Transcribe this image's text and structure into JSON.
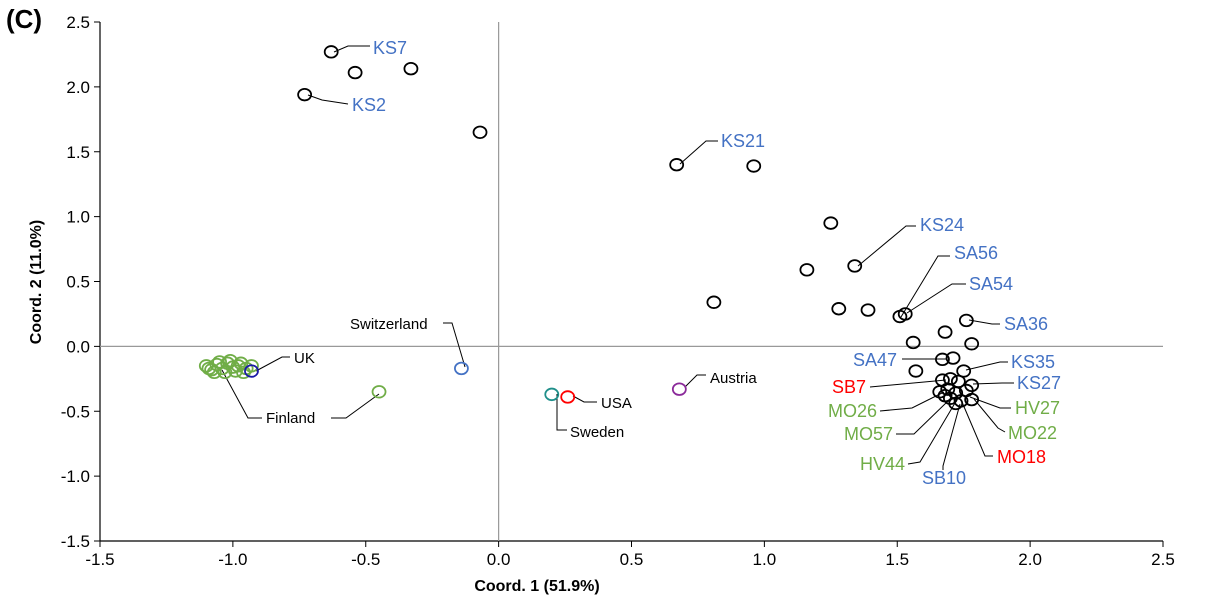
{
  "panel_label": "(C)",
  "colors": {
    "point": "#000000",
    "blue": "#4472c4",
    "red": "#ff0000",
    "green": "#70ad47",
    "axis": "#999999"
  },
  "chart_data": {
    "type": "scatter",
    "title": "",
    "xlabel": "Coord. 1 (51.9%)",
    "ylabel": "Coord. 2 (11.0%)",
    "xlim": [
      -1.5,
      2.5
    ],
    "ylim": [
      -1.5,
      2.5
    ],
    "xticks": [
      -1.5,
      -1.0,
      -0.5,
      0.0,
      0.5,
      1.0,
      1.5,
      2.0,
      2.5
    ],
    "xtick_labels": [
      "-1.5",
      "-1.0",
      "-0.5",
      "0.0",
      "0.5",
      "1.0",
      "1.5",
      "2.0",
      "2.5"
    ],
    "yticks": [
      -1.5,
      -1.0,
      -0.5,
      0.0,
      0.5,
      1.0,
      1.5,
      2.0,
      2.5
    ],
    "ytick_labels": [
      "-1.5",
      "-1.0",
      "-0.5",
      "0.0",
      "0.5",
      "1.0",
      "1.5",
      "2.0",
      "2.5"
    ],
    "grid": false,
    "zero_lines": true,
    "series": [
      {
        "color": "black",
        "points": [
          [
            -0.63,
            2.27
          ],
          [
            -0.54,
            2.11
          ],
          [
            -0.33,
            2.14
          ],
          [
            -0.73,
            1.94
          ],
          [
            -0.07,
            1.65
          ],
          [
            0.67,
            1.4
          ],
          [
            0.96,
            1.39
          ],
          [
            1.25,
            0.95
          ],
          [
            1.34,
            0.62
          ],
          [
            1.16,
            0.59
          ],
          [
            0.81,
            0.34
          ],
          [
            1.28,
            0.29
          ],
          [
            1.39,
            0.28
          ],
          [
            1.51,
            0.23
          ],
          [
            1.53,
            0.25
          ],
          [
            1.76,
            0.2
          ],
          [
            1.68,
            0.11
          ],
          [
            1.56,
            0.03
          ],
          [
            1.78,
            0.02
          ],
          [
            1.67,
            -0.1
          ],
          [
            1.71,
            -0.09
          ],
          [
            1.57,
            -0.19
          ],
          [
            1.75,
            -0.19
          ],
          [
            1.67,
            -0.26
          ],
          [
            1.7,
            -0.25
          ],
          [
            1.73,
            -0.27
          ],
          [
            1.78,
            -0.3
          ],
          [
            1.66,
            -0.35
          ],
          [
            1.69,
            -0.33
          ],
          [
            1.72,
            -0.36
          ],
          [
            1.76,
            -0.34
          ],
          [
            1.7,
            -0.4
          ],
          [
            1.74,
            -0.42
          ],
          [
            1.78,
            -0.41
          ],
          [
            1.68,
            -0.38
          ],
          [
            1.72,
            -0.44
          ]
        ]
      },
      {
        "color": "green",
        "points": [
          [
            -1.1,
            -0.15
          ],
          [
            -1.08,
            -0.18
          ],
          [
            -1.06,
            -0.14
          ],
          [
            -1.04,
            -0.17
          ],
          [
            -1.02,
            -0.13
          ],
          [
            -1.0,
            -0.16
          ],
          [
            -0.98,
            -0.15
          ],
          [
            -1.07,
            -0.2
          ],
          [
            -1.03,
            -0.2
          ],
          [
            -0.99,
            -0.19
          ],
          [
            -1.05,
            -0.12
          ],
          [
            -1.01,
            -0.11
          ],
          [
            -0.97,
            -0.13
          ],
          [
            -0.95,
            -0.17
          ],
          [
            -0.93,
            -0.15
          ],
          [
            -0.96,
            -0.2
          ],
          [
            -1.09,
            -0.17
          ],
          [
            -0.45,
            -0.35
          ]
        ]
      },
      {
        "color": "navy",
        "points": [
          [
            -0.93,
            -0.19
          ]
        ]
      },
      {
        "color": "blue",
        "points": [
          [
            -0.14,
            -0.17
          ]
        ]
      },
      {
        "color": "teal",
        "points": [
          [
            0.2,
            -0.37
          ]
        ]
      },
      {
        "color": "red",
        "points": [
          [
            0.26,
            -0.39
          ]
        ]
      },
      {
        "color": "purple",
        "points": [
          [
            0.68,
            -0.33
          ]
        ]
      }
    ],
    "annotations": [
      {
        "text": "KS7",
        "color": "blue",
        "size": "big",
        "ax": -0.63,
        "ay": 2.27,
        "tx": 0.4,
        "ty": 2.3
      },
      {
        "text": "KS2",
        "color": "blue",
        "size": "big",
        "ax": -0.73,
        "ay": 1.94,
        "tx": 0.58,
        "ty": 1.86
      },
      {
        "text": "KS21",
        "color": "blue",
        "size": "big",
        "ax": 0.67,
        "ay": 1.4,
        "tx": 1.78,
        "ty": 1.58
      },
      {
        "text": "KS24",
        "color": "blue",
        "size": "big",
        "ax": 1.34,
        "ay": 0.62,
        "tx": 3.16,
        "ty": 0.94
      },
      {
        "text": "SA56",
        "color": "blue",
        "size": "big",
        "ax": 1.51,
        "ay": 0.23,
        "tx": 3.15,
        "ty": 0.71
      },
      {
        "text": "SA54",
        "color": "blue",
        "size": "big",
        "ax": 1.53,
        "ay": 0.25,
        "tx": 2.98,
        "ty": 0.47
      },
      {
        "text": "SA36",
        "color": "blue",
        "size": "big",
        "ax": 1.76,
        "ay": 0.2,
        "tx": 3.03,
        "ty": 0.16
      },
      {
        "text": "SA47",
        "color": "blue",
        "size": "big",
        "ax": 1.67,
        "ay": -0.1,
        "tx": -0.91,
        "ty": -0.11
      },
      {
        "text": "KS35",
        "color": "blue",
        "size": "big",
        "ax": 1.75,
        "ay": -0.19,
        "tx": 2.82,
        "ty": -0.1
      },
      {
        "text": "SB7",
        "color": "red",
        "size": "big",
        "ax": 1.67,
        "ay": -0.26,
        "tx": -0.61,
        "ty": -0.3
      },
      {
        "text": "KS27",
        "color": "blue",
        "size": "big",
        "ax": 1.78,
        "ay": -0.3,
        "tx": 2.48,
        "ty": -0.3
      },
      {
        "text": "MO26",
        "color": "green",
        "size": "big",
        "ax": 1.66,
        "ay": -0.35,
        "tx": -0.38,
        "ty": -0.5
      },
      {
        "text": "HV27",
        "color": "green",
        "size": "big",
        "ax": 1.76,
        "ay": -0.34,
        "tx": 2.22,
        "ty": -0.49
      },
      {
        "text": "MO57",
        "color": "green",
        "size": "big",
        "ax": 1.68,
        "ay": -0.38,
        "tx": -0.24,
        "ty": -0.7
      },
      {
        "text": "MO22",
        "color": "green",
        "size": "big",
        "ax": 1.78,
        "ay": -0.41,
        "tx": 2.1,
        "ty": -0.68
      },
      {
        "text": "HV44",
        "color": "green",
        "size": "big",
        "ax": 1.7,
        "ay": -0.4,
        "tx": -0.06,
        "ty": -0.92
      },
      {
        "text": "MO18",
        "color": "red",
        "size": "big",
        "ax": 1.72,
        "ay": -0.44,
        "tx": 1.98,
        "ty": -0.9
      },
      {
        "text": "SB10",
        "color": "blue",
        "size": "big",
        "ax": 1.74,
        "ay": -0.42,
        "tx": -0.02,
        "ty": -1.04
      },
      {
        "text": "UK",
        "color": "black",
        "size": "small",
        "ax": -0.93,
        "ay": -0.19,
        "tx": 1.12,
        "ty": -0.1
      },
      {
        "text": "Finland",
        "color": "black",
        "size": "small",
        "ax": -1.03,
        "ay": -0.2,
        "tx": 0.18,
        "ty": -0.57
      },
      {
        "text": "Finland",
        "color": "black",
        "size": "small",
        "ax": -0.45,
        "ay": -0.35,
        "tx": 0.18,
        "ty": -0.57
      },
      {
        "text": "Switzerland",
        "color": "black",
        "size": "small",
        "ax": -0.14,
        "ay": -0.17,
        "tx": 0.13,
        "ty": 0.2
      },
      {
        "text": "USA",
        "color": "black",
        "size": "small",
        "ax": 0.26,
        "ay": -0.39,
        "tx": 0.28,
        "ty": -0.45
      },
      {
        "text": "Sweden",
        "color": "black",
        "size": "small",
        "ax": 0.2,
        "ay": -0.37,
        "tx": 0.53,
        "ty": -0.66
      },
      {
        "text": "Austria",
        "color": "black",
        "size": "small",
        "ax": 0.68,
        "ay": -0.33,
        "tx": 0.84,
        "ty": -0.24
      }
    ]
  }
}
